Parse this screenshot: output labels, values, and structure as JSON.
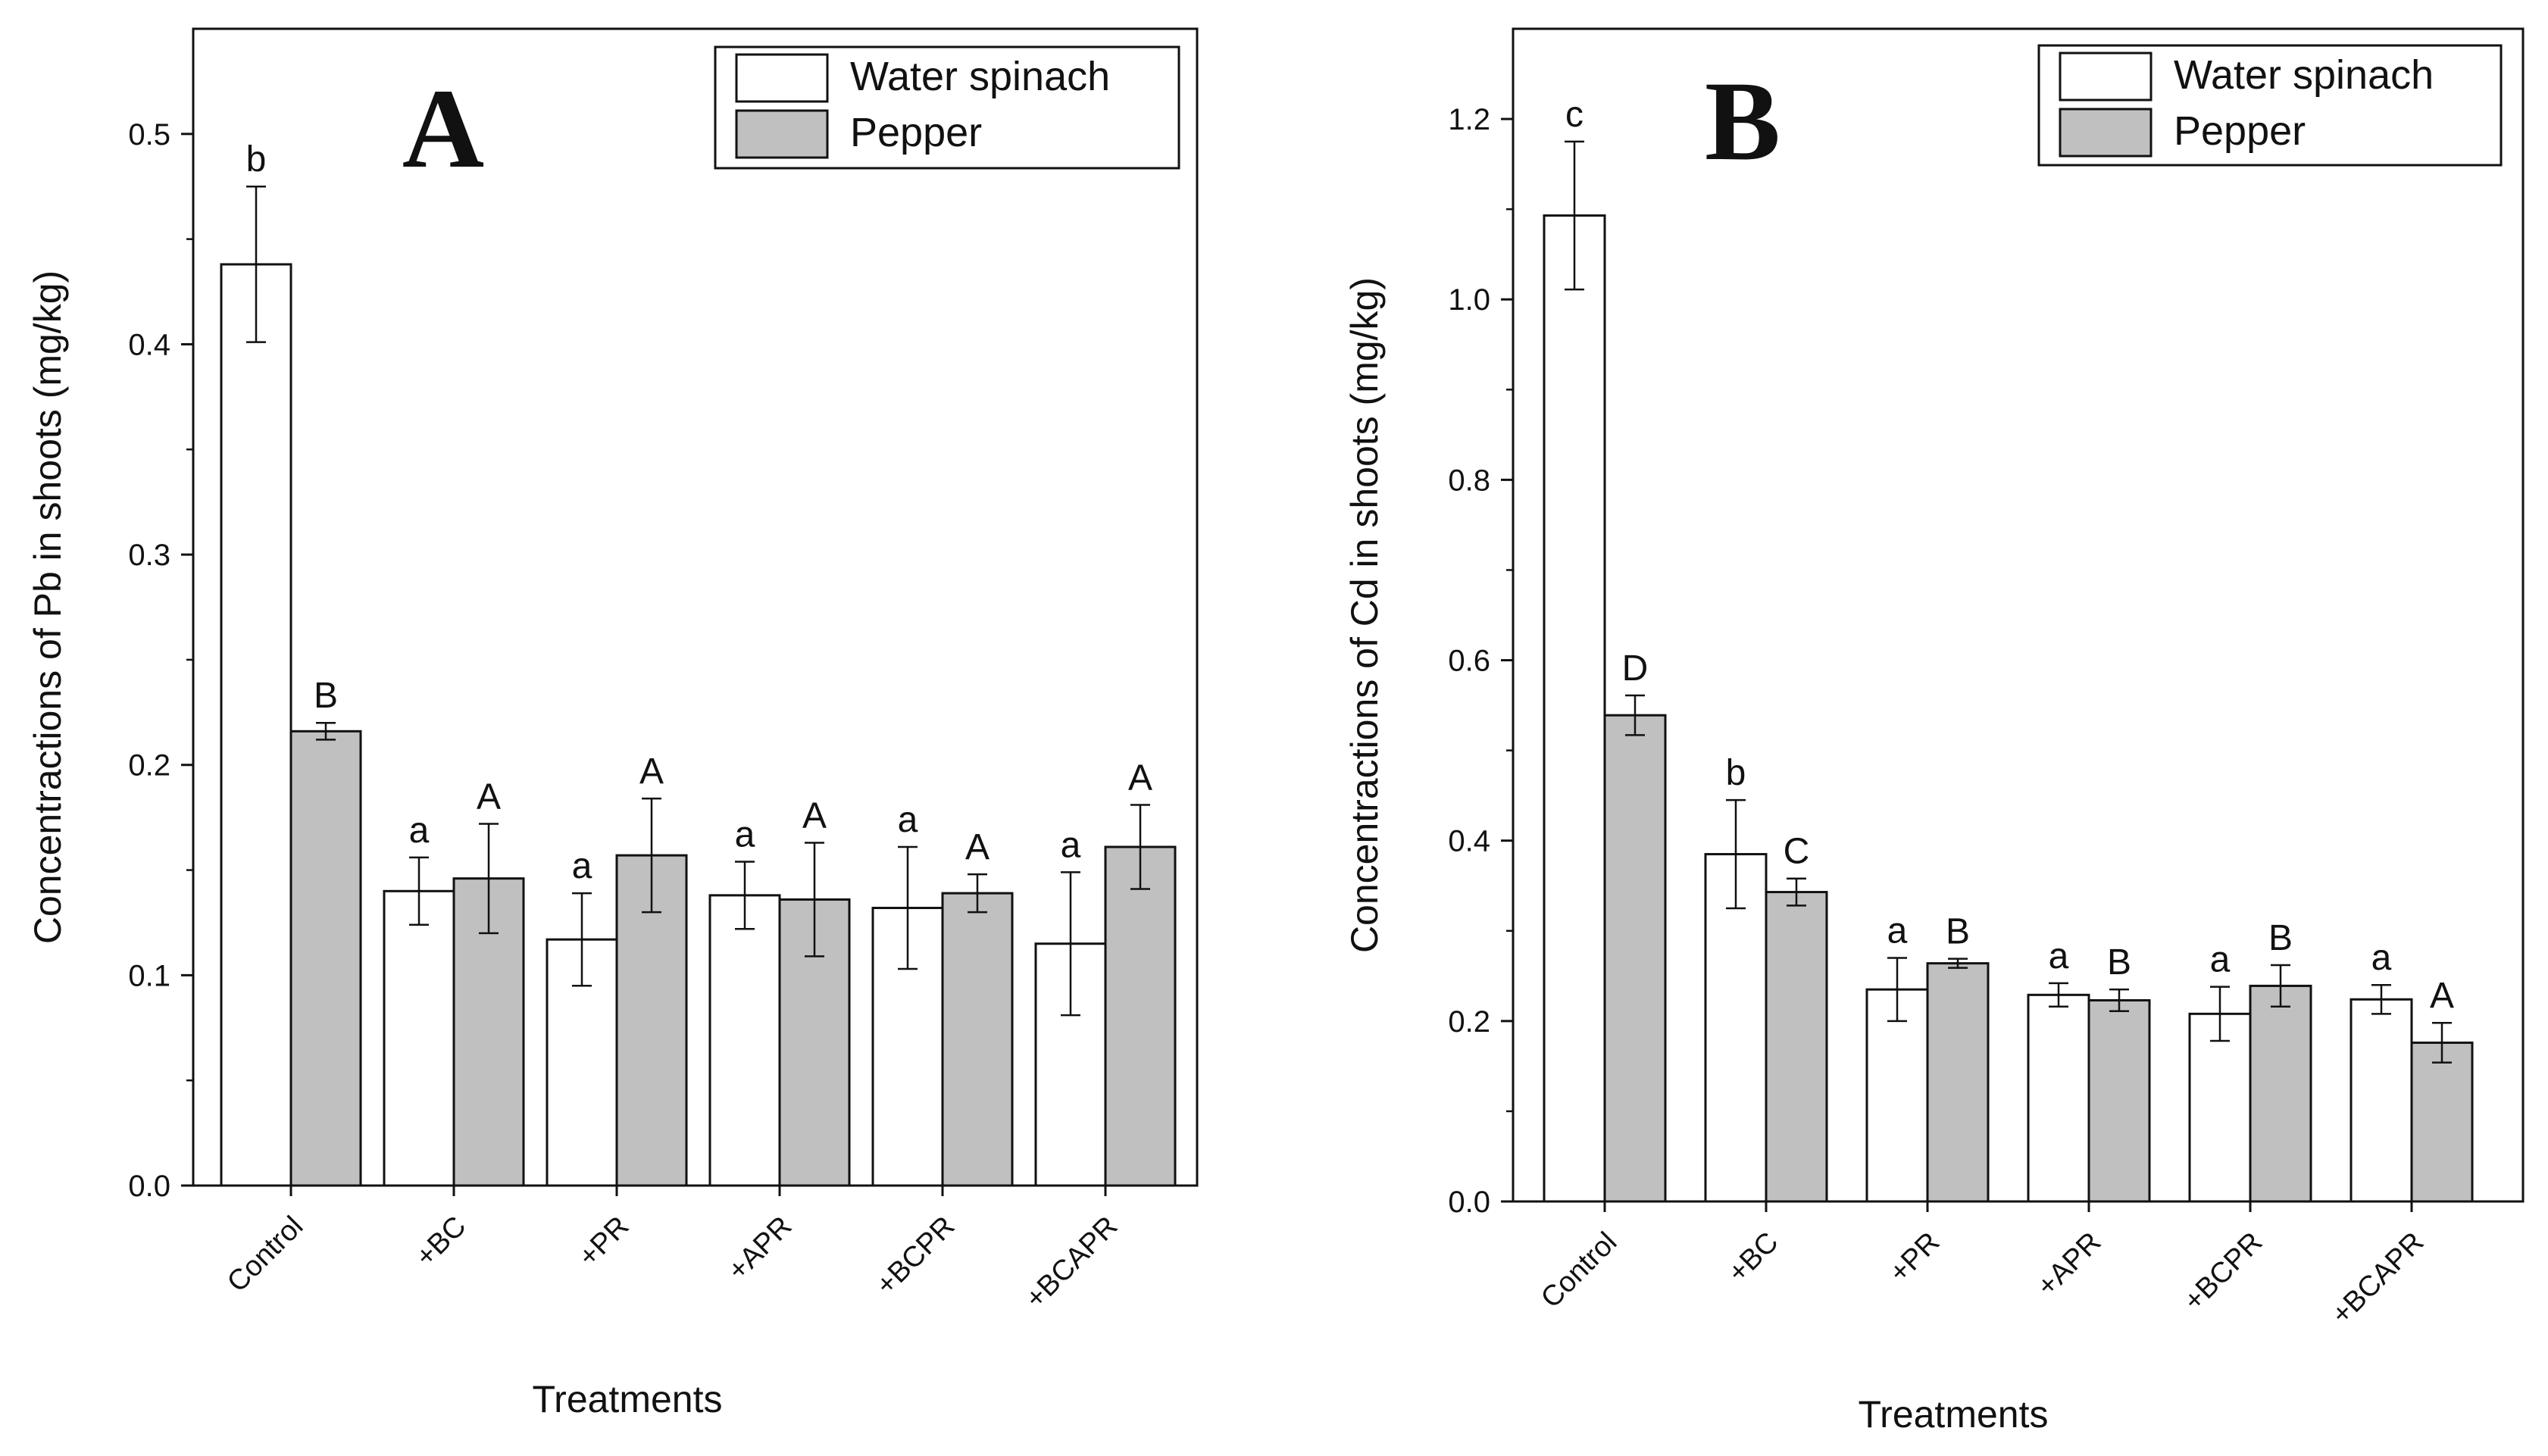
{
  "chart_data": [
    {
      "type": "bar",
      "panel_label": "A",
      "title": "",
      "xlabel": "Treatments",
      "ylabel": "Concentractions of Pb in shoots (mg/kg)",
      "ylim": [
        0,
        0.55
      ],
      "yticks": [
        "0.0",
        "0.1",
        "0.2",
        "0.3",
        "0.4",
        "0.5"
      ],
      "ytick_values": [
        0,
        0.1,
        0.2,
        0.3,
        0.4,
        0.5
      ],
      "categories": [
        "Control",
        "+BC",
        "+PR",
        "+APR",
        "+BCPR",
        "+BCAPR"
      ],
      "legend_position": "top-right",
      "series": [
        {
          "name": "Water spinach",
          "color": "#ffffff",
          "values": [
            0.438,
            0.14,
            0.117,
            0.138,
            0.132,
            0.115
          ],
          "errors": [
            0.037,
            0.016,
            0.022,
            0.016,
            0.029,
            0.034
          ],
          "letters": [
            "b",
            "a",
            "a",
            "a",
            "a",
            "a"
          ]
        },
        {
          "name": "Pepper",
          "color": "#c0c0c0",
          "values": [
            0.216,
            0.146,
            0.157,
            0.136,
            0.139,
            0.161
          ],
          "errors": [
            0.004,
            0.026,
            0.027,
            0.027,
            0.009,
            0.02
          ],
          "letters": [
            "B",
            "A",
            "A",
            "A",
            "A",
            "A"
          ]
        }
      ]
    },
    {
      "type": "bar",
      "panel_label": "B",
      "title": "",
      "xlabel": "Treatments",
      "ylabel": "Concentractions of Cd in shoots (mg/kg)",
      "ylim": [
        0,
        1.3
      ],
      "yticks": [
        "0.0",
        "0.2",
        "0.4",
        "0.6",
        "0.8",
        "1.0",
        "1.2"
      ],
      "ytick_values": [
        0,
        0.2,
        0.4,
        0.6,
        0.8,
        1.0,
        1.2
      ],
      "categories": [
        "Control",
        "+BC",
        "+PR",
        "+APR",
        "+BCPR",
        "+BCAPR"
      ],
      "legend_position": "top-right",
      "series": [
        {
          "name": "Water spinach",
          "color": "#ffffff",
          "values": [
            1.093,
            0.385,
            0.235,
            0.229,
            0.208,
            0.224
          ],
          "errors": [
            0.082,
            0.06,
            0.035,
            0.013,
            0.03,
            0.016
          ],
          "letters": [
            "c",
            "b",
            "a",
            "a",
            "a",
            "a"
          ]
        },
        {
          "name": "Pepper",
          "color": "#c0c0c0",
          "values": [
            0.539,
            0.343,
            0.264,
            0.223,
            0.239,
            0.176
          ],
          "errors": [
            0.022,
            0.015,
            0.005,
            0.012,
            0.023,
            0.022
          ],
          "letters": [
            "D",
            "C",
            "B",
            "B",
            "B",
            "A"
          ]
        }
      ]
    }
  ]
}
